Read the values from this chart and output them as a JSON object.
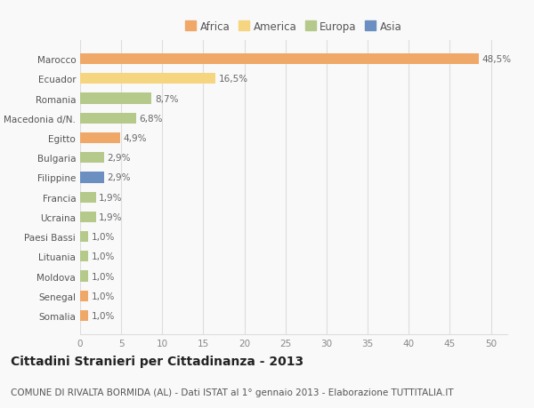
{
  "categories": [
    "Somalia",
    "Senegal",
    "Moldova",
    "Lituania",
    "Paesi Bassi",
    "Ucraina",
    "Francia",
    "Filippine",
    "Bulgaria",
    "Egitto",
    "Macedonia d/N.",
    "Romania",
    "Ecuador",
    "Marocco"
  ],
  "values": [
    1.0,
    1.0,
    1.0,
    1.0,
    1.0,
    1.9,
    1.9,
    2.9,
    2.9,
    4.9,
    6.8,
    8.7,
    16.5,
    48.5
  ],
  "colors": [
    "#f0a868",
    "#f0a868",
    "#b5c98a",
    "#b5c98a",
    "#b5c98a",
    "#b5c98a",
    "#b5c98a",
    "#6b8fc0",
    "#b5c98a",
    "#f0a868",
    "#b5c98a",
    "#b5c98a",
    "#f5d580",
    "#f0a868"
  ],
  "labels": [
    "1,0%",
    "1,0%",
    "1,0%",
    "1,0%",
    "1,0%",
    "1,9%",
    "1,9%",
    "2,9%",
    "2,9%",
    "4,9%",
    "6,8%",
    "8,7%",
    "16,5%",
    "48,5%"
  ],
  "legend": [
    {
      "label": "Africa",
      "color": "#f0a868"
    },
    {
      "label": "America",
      "color": "#f5d580"
    },
    {
      "label": "Europa",
      "color": "#b5c98a"
    },
    {
      "label": "Asia",
      "color": "#6b8fc0"
    }
  ],
  "xlim": [
    0,
    52
  ],
  "xticks": [
    0,
    5,
    10,
    15,
    20,
    25,
    30,
    35,
    40,
    45,
    50
  ],
  "title": "Cittadini Stranieri per Cittadinanza - 2013",
  "subtitle": "COMUNE DI RIVALTA BORMIDA (AL) - Dati ISTAT al 1° gennaio 2013 - Elaborazione TUTTITALIA.IT",
  "background_color": "#f9f9f9",
  "grid_color": "#dddddd",
  "bar_height": 0.55,
  "label_fontsize": 7.5,
  "tick_label_fontsize": 7.5,
  "title_fontsize": 10,
  "subtitle_fontsize": 7.5
}
